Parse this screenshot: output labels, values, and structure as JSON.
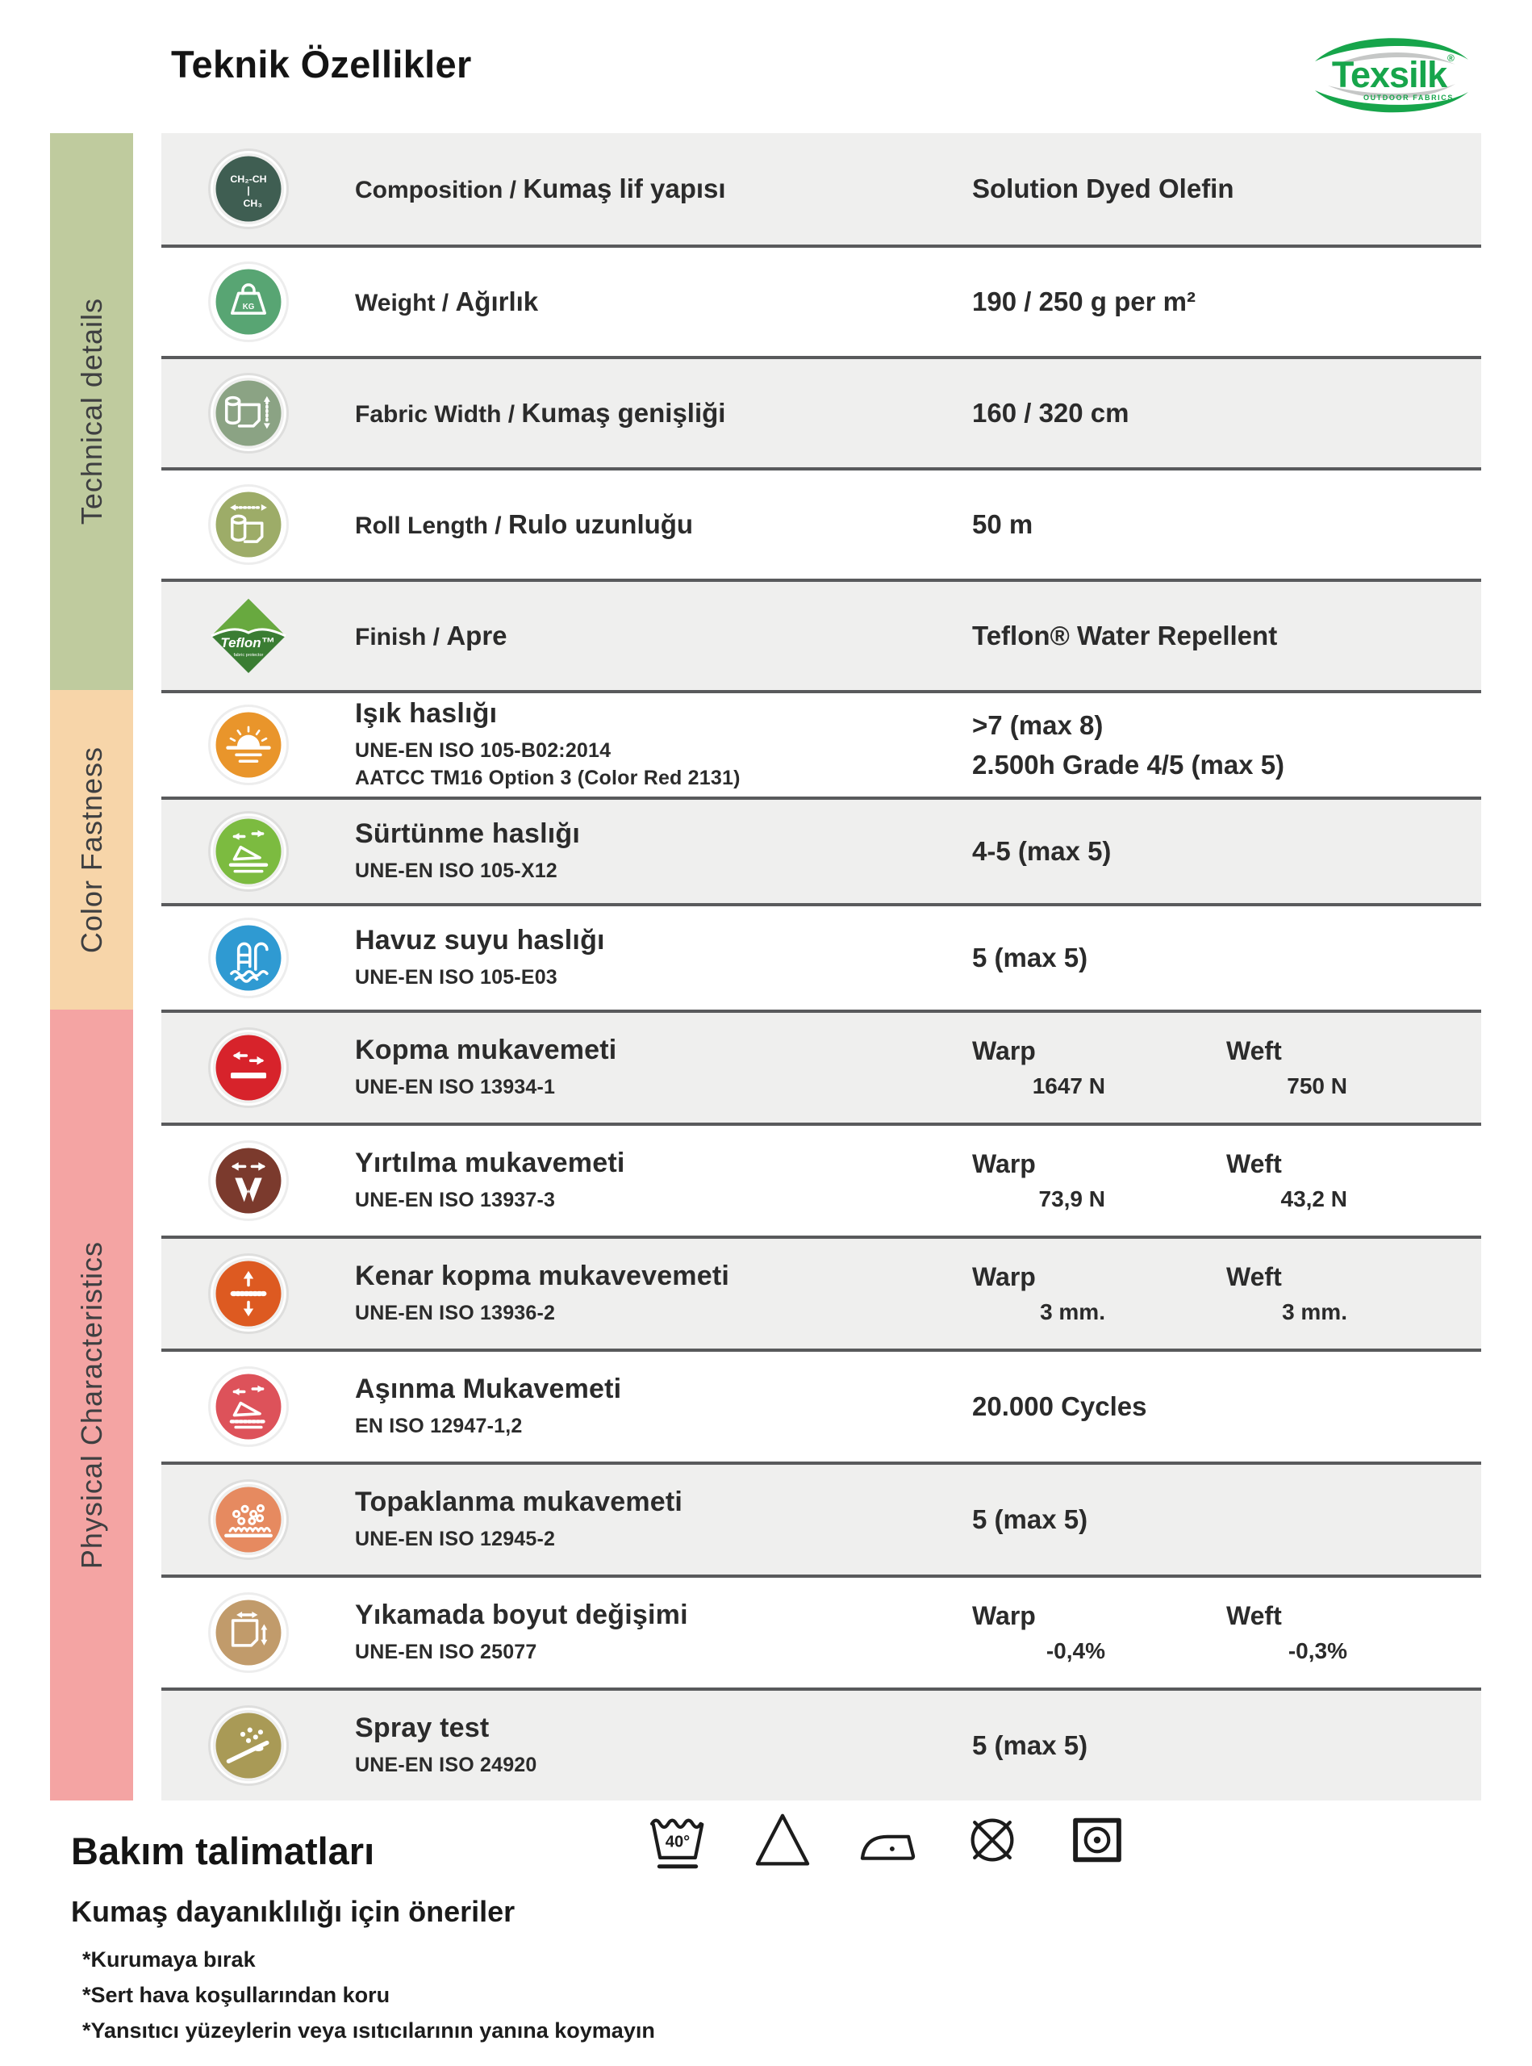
{
  "header": {
    "title": "Teknik Özellikler",
    "logo": {
      "name": "Texsilk",
      "registered": "®",
      "tagline": "OUTDOOR FABRICS"
    }
  },
  "sidebar": {
    "sections": [
      {
        "label": "Technical details",
        "color": "#bfcb9e"
      },
      {
        "label": "Color Fastness",
        "color": "#f7d5a9"
      },
      {
        "label": "Physical Characteristics",
        "color": "#f4a4a3"
      }
    ]
  },
  "icon_texts": {
    "composition": [
      "CH₂-CH",
      "|",
      "CH₃"
    ],
    "weight": "KG",
    "teflon_name": "Teflon",
    "teflon_reg": "™",
    "teflon_sub": "fabric protector"
  },
  "table": {
    "warp_label": "Warp",
    "weft_label": "Weft",
    "rows": [
      {
        "section": 0,
        "icon": "composition",
        "color": "#3f5e52",
        "label_en": "Composition /",
        "label_tr": "Kumaş lif yapısı",
        "value": "Solution Dyed Olefin"
      },
      {
        "section": 0,
        "icon": "weight",
        "color": "#58a573",
        "label_en": "Weight /",
        "label_tr": "Ağırlık",
        "value": "190 / 250 g per m²"
      },
      {
        "section": 0,
        "icon": "fabric-width",
        "color": "#8ba384",
        "label_en": "Fabric Width /",
        "label_tr": "Kumaş genişliği",
        "value": "160 / 320 cm"
      },
      {
        "section": 0,
        "icon": "roll-length",
        "color": "#9dac68",
        "label_en": "Roll Length /",
        "label_tr": "Rulo uzunluğu",
        "value": "50 m"
      },
      {
        "section": 0,
        "icon": "teflon",
        "color": "#3a7d33",
        "label_en": "Finish /",
        "label_tr": "Apre",
        "value": "Teflon® Water Repellent"
      },
      {
        "section": 1,
        "icon": "light-fastness",
        "color": "#e9952b",
        "title": "Işık haslığı",
        "standards": [
          "UNE-EN ISO 105-B02:2014",
          "AATCC TM16 Option 3 (Color Red 2131)"
        ],
        "value_lines": [
          ">7 (max 8)",
          "2.500h Grade 4/5 (max 5)"
        ]
      },
      {
        "section": 1,
        "icon": "rubbing-fastness",
        "color": "#7cbb40",
        "title": "Sürtünme haslığı",
        "standards": [
          "UNE-EN ISO 105-X12"
        ],
        "value": "4-5 (max 5)"
      },
      {
        "section": 1,
        "icon": "pool-water",
        "color": "#2f9ad2",
        "title": "Havuz suyu haslığı",
        "standards": [
          "UNE-EN ISO 105-E03"
        ],
        "value": "5 (max 5)"
      },
      {
        "section": 2,
        "icon": "tensile-strength",
        "color": "#d7232b",
        "title": "Kopma mukavemeti",
        "standards": [
          "UNE-EN ISO 13934-1"
        ],
        "warp": "1647 N",
        "weft": "750 N"
      },
      {
        "section": 2,
        "icon": "tear-strength",
        "color": "#7b3a2d",
        "title": "Yırtılma mukavemeti",
        "standards": [
          "UNE-EN ISO 13937-3"
        ],
        "warp": "73,9 N",
        "weft": "43,2 N"
      },
      {
        "section": 2,
        "icon": "seam-slippage",
        "color": "#dd5a21",
        "title": "Kenar kopma mukavevemeti",
        "standards": [
          "UNE-EN ISO 13936-2"
        ],
        "warp": "3 mm.",
        "weft": "3 mm."
      },
      {
        "section": 2,
        "icon": "abrasion",
        "color": "#dd525a",
        "title": "Aşınma Mukavemeti",
        "standards": [
          "EN ISO 12947-1,2"
        ],
        "value": "20.000 Cycles"
      },
      {
        "section": 2,
        "icon": "pilling",
        "color": "#e68a60",
        "title": "Topaklanma mukavemeti",
        "standards": [
          "UNE-EN ISO 12945-2"
        ],
        "value": "5 (max 5)"
      },
      {
        "section": 2,
        "icon": "shrinkage",
        "color": "#c19b6b",
        "title": "Yıkamada boyut değişimi",
        "standards": [
          "UNE-EN ISO 25077"
        ],
        "warp": "-0,4%",
        "weft": "-0,3%"
      },
      {
        "section": 2,
        "icon": "spray-test",
        "color": "#a99a56",
        "title": "Spray test",
        "standards": [
          "UNE-EN ISO 24920"
        ],
        "value": "5 (max 5)"
      }
    ]
  },
  "care": {
    "title": "Bakım talimatları",
    "subtitle": "Kumaş dayanıklılığı için öneriler",
    "wash_temp": "40°",
    "symbols": [
      "wash-40",
      "bleach-triangle",
      "iron-one-dot",
      "do-not-dry-clean",
      "tumble-dry"
    ],
    "notes": [
      "*Kurumaya bırak",
      "*Sert hava koşullarından koru",
      "*Yansıtıcı yüzeylerin veya ısıtıcılarının yanına koymayın"
    ]
  }
}
